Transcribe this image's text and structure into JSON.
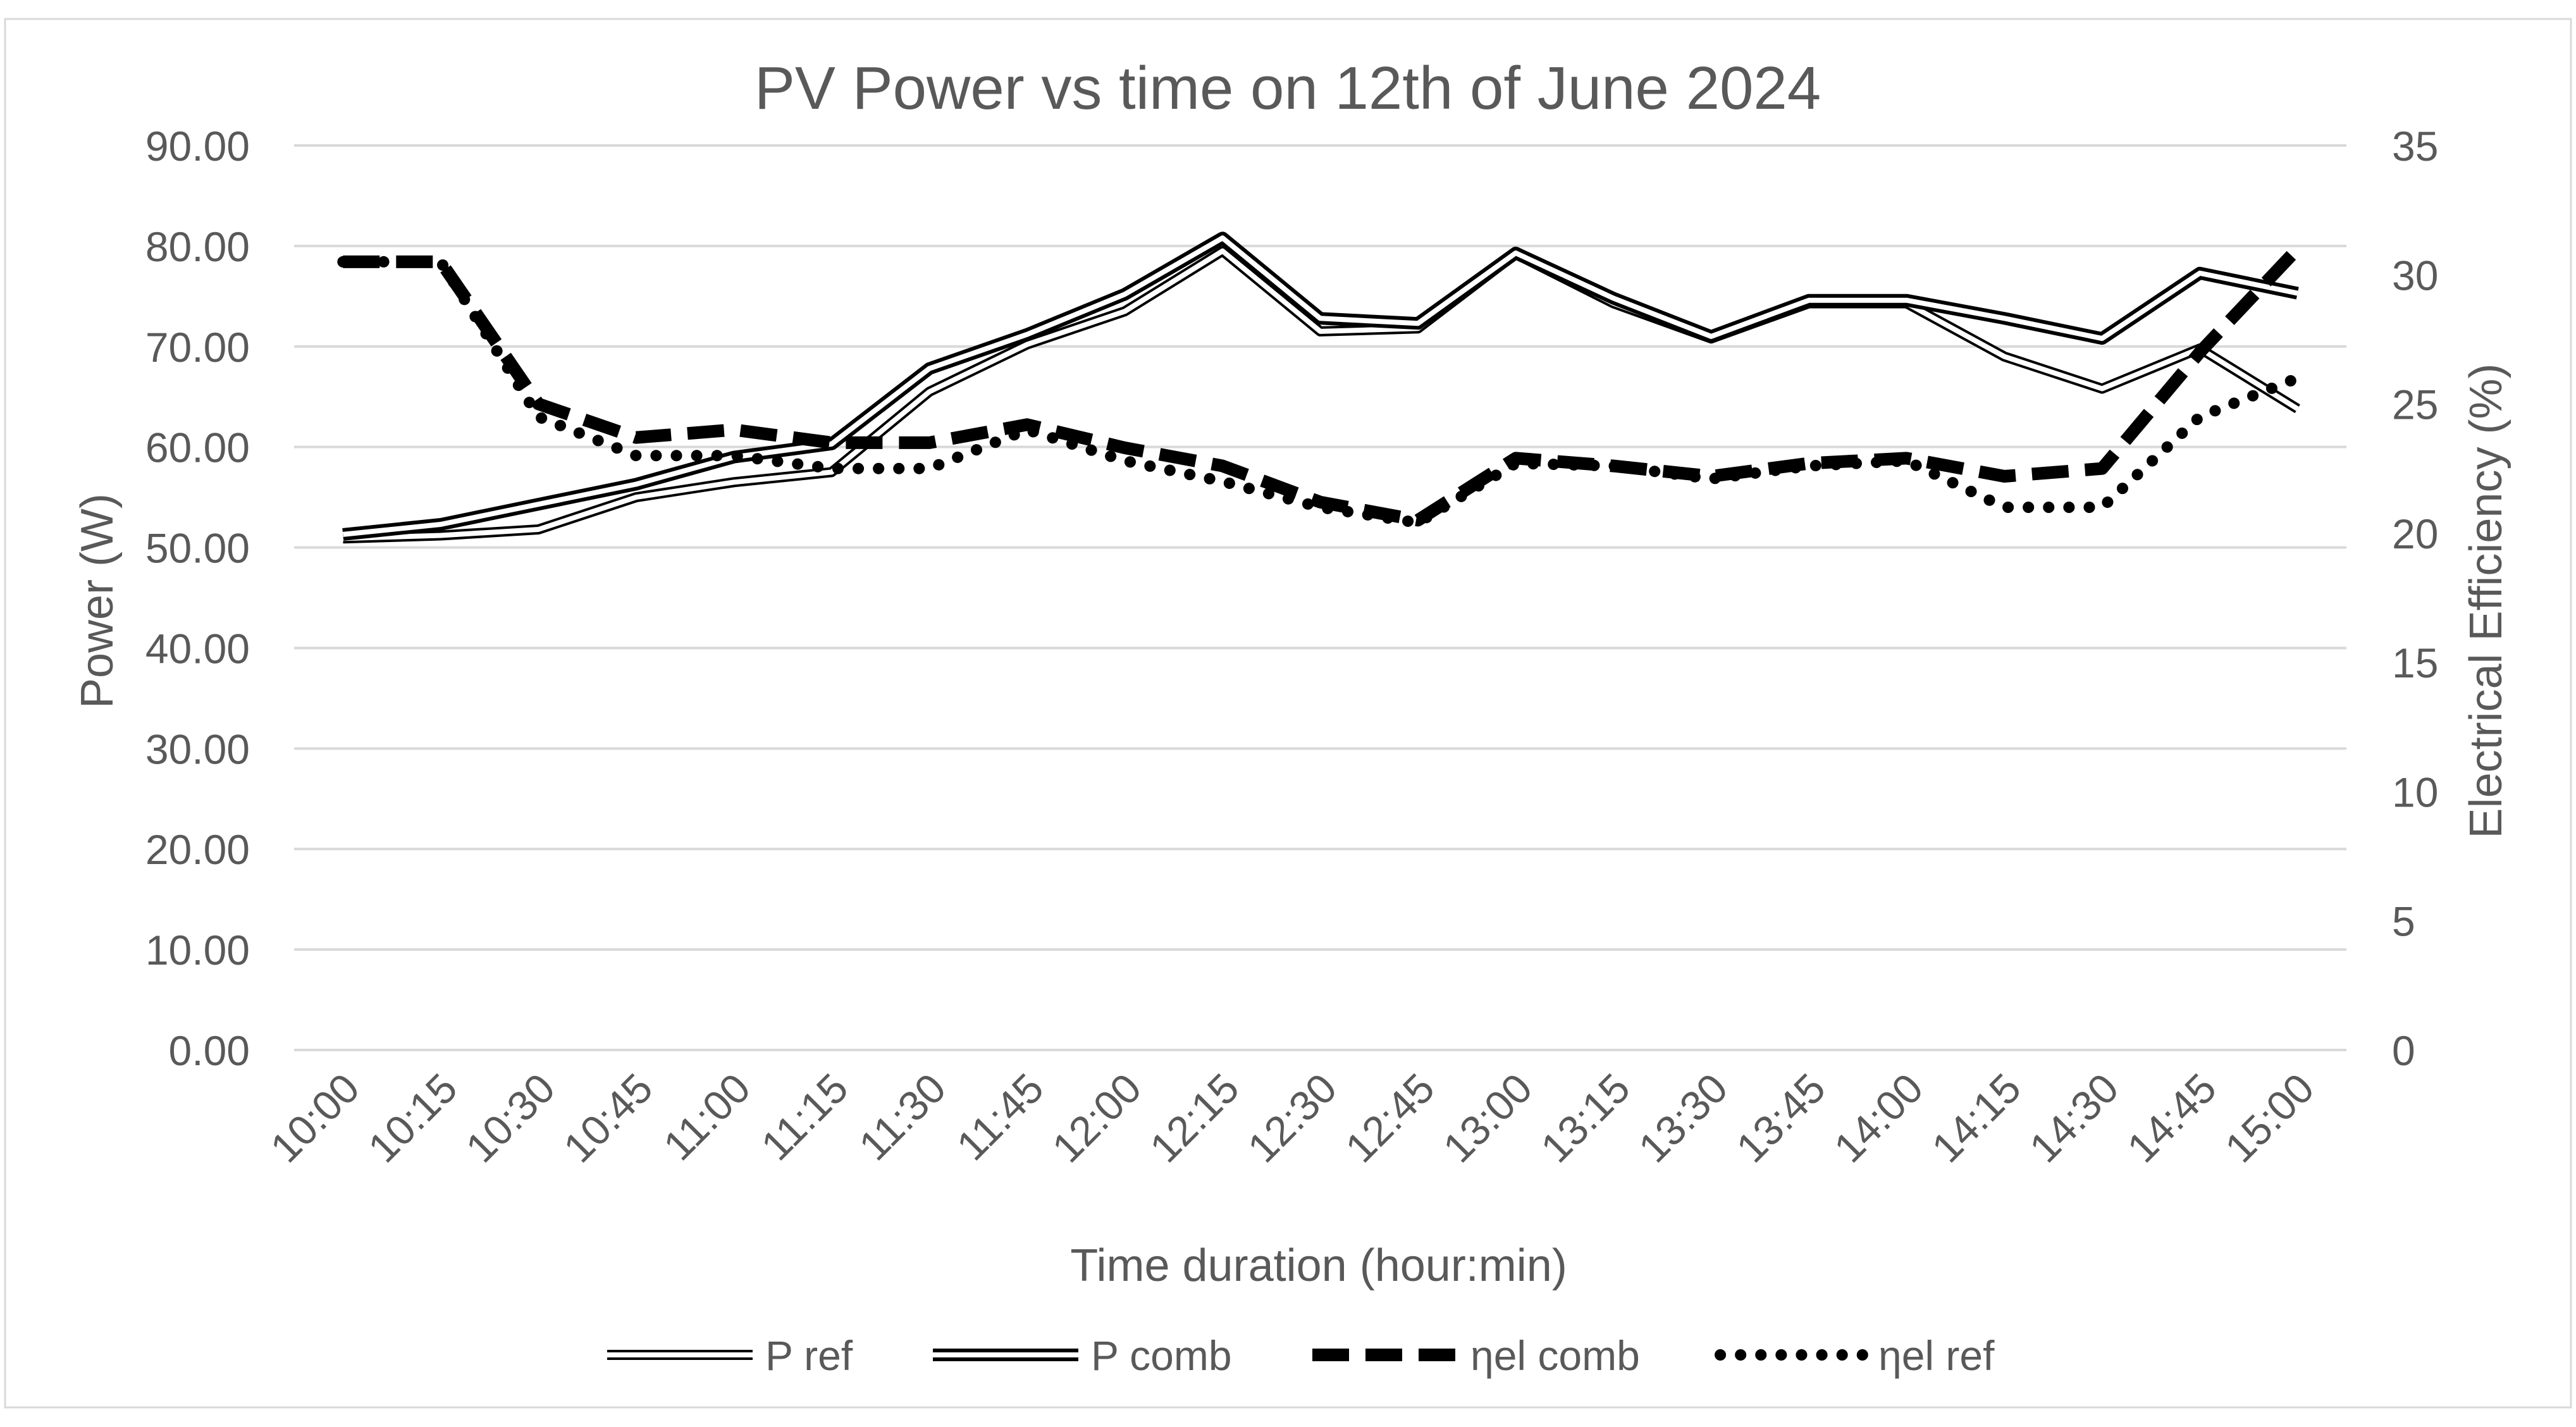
{
  "chart_data": {
    "type": "line",
    "title": "PV Power vs time on 12th of June 2024",
    "xlabel": "Time duration (hour:min)",
    "ylabel": "Power (W)",
    "y2label": "Electrical Efficiency (%)",
    "categories": [
      "10:00",
      "10:15",
      "10:30",
      "10:45",
      "11:00",
      "11:15",
      "11:30",
      "11:45",
      "12:00",
      "12:15",
      "12:30",
      "12:45",
      "13:00",
      "13:15",
      "13:30",
      "13:45",
      "14:00",
      "14:15",
      "14:30",
      "14:45",
      "15:00"
    ],
    "ylim": [
      0,
      90
    ],
    "y2lim": [
      0,
      35
    ],
    "yticks": [
      "0.00",
      "10.00",
      "20.00",
      "30.00",
      "40.00",
      "50.00",
      "60.00",
      "70.00",
      "80.00",
      "90.00"
    ],
    "y2ticks": [
      "0",
      "5",
      "10",
      "15",
      "20",
      "25",
      "30",
      "35"
    ],
    "legend_position": "bottom",
    "grid": true,
    "series": [
      {
        "name": "P ref",
        "axis": "left",
        "style": "double-thin",
        "values": [
          50.9,
          51.2,
          51.8,
          55.0,
          56.5,
          57.5,
          65.5,
          70.2,
          73.5,
          79.5,
          71.5,
          71.8,
          79.2,
          74.3,
          70.8,
          74.3,
          74.3,
          69.0,
          65.8,
          69.8,
          63.8
        ]
      },
      {
        "name": "P comb",
        "axis": "left",
        "style": "double-thick",
        "values": [
          51.3,
          52.3,
          54.3,
          56.3,
          59.0,
          60.3,
          67.8,
          71.2,
          75.2,
          80.8,
          72.8,
          72.3,
          79.3,
          74.8,
          71.0,
          74.6,
          74.6,
          72.8,
          70.8,
          77.3,
          75.3
        ]
      },
      {
        "name": "ηel comb",
        "axis": "right",
        "style": "dash",
        "values": [
          30.5,
          30.5,
          25.0,
          23.7,
          24.0,
          23.5,
          23.5,
          24.2,
          23.3,
          22.6,
          21.2,
          20.5,
          22.9,
          22.6,
          22.2,
          22.7,
          22.9,
          22.2,
          22.5,
          27.0,
          31.0
        ]
      },
      {
        "name": "ηel ref",
        "axis": "right",
        "style": "dot",
        "values": [
          30.5,
          30.5,
          24.5,
          23.0,
          23.0,
          22.5,
          22.5,
          24.0,
          22.8,
          22.0,
          21.0,
          20.4,
          22.7,
          22.6,
          22.1,
          22.6,
          22.8,
          21.0,
          21.0,
          24.5,
          26.0
        ]
      }
    ]
  }
}
